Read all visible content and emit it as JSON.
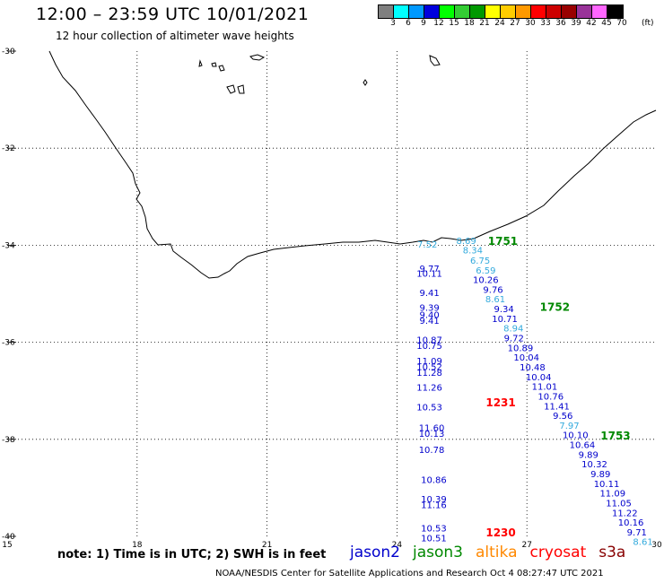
{
  "header": {
    "title": "12:00 – 23:59 UTC 10/01/2021",
    "subtitle": "12 hour collection of altimeter wave heights"
  },
  "color_scale": {
    "unit": "(ft)",
    "bins": [
      {
        "label": "3",
        "color": "#7f7f7f"
      },
      {
        "label": "6",
        "color": "#00ffff"
      },
      {
        "label": "9",
        "color": "#0099ff"
      },
      {
        "label": "12",
        "color": "#0000dd"
      },
      {
        "label": "15",
        "color": "#00ff00"
      },
      {
        "label": "18",
        "color": "#33cc33"
      },
      {
        "label": "21",
        "color": "#009900"
      },
      {
        "label": "24",
        "color": "#ffff00"
      },
      {
        "label": "27",
        "color": "#ffcc00"
      },
      {
        "label": "30",
        "color": "#ff9900"
      },
      {
        "label": "33",
        "color": "#ff0000"
      },
      {
        "label": "36",
        "color": "#cc0000"
      },
      {
        "label": "39",
        "color": "#990000"
      },
      {
        "label": "42",
        "color": "#993399"
      },
      {
        "label": "45",
        "color": "#ff66ff"
      },
      {
        "label": "70",
        "color": "#000000"
      }
    ]
  },
  "map": {
    "lat_labels": [
      "-30",
      "-32",
      "-34",
      "-36",
      "-38",
      "-40"
    ],
    "lon_labels": [
      "15",
      "18",
      "21",
      "24",
      "27",
      "30"
    ],
    "colors": {
      "jason2": "#0000cc",
      "jason3": "#008800",
      "altika": "#ff8800",
      "cryosat": "#ff0000",
      "light": "#33aadd",
      "s3a": "#880000"
    }
  },
  "observations": [
    {
      "text": "7.52",
      "lon": 24.7,
      "lat": -34.05,
      "sat": "light"
    },
    {
      "text": "8.69",
      "lon": 25.6,
      "lat": -33.97,
      "sat": "light"
    },
    {
      "text": "8.34",
      "lon": 25.75,
      "lat": -34.17,
      "sat": "light"
    },
    {
      "text": "6.75",
      "lon": 25.92,
      "lat": -34.38,
      "sat": "light"
    },
    {
      "text": "6.59",
      "lon": 26.05,
      "lat": -34.58,
      "sat": "light"
    },
    {
      "text": "10.26",
      "lon": 26.05,
      "lat": -34.78,
      "sat": "jason2"
    },
    {
      "text": "9.76",
      "lon": 26.22,
      "lat": -34.98,
      "sat": "jason2"
    },
    {
      "text": "8.61",
      "lon": 26.27,
      "lat": -35.18,
      "sat": "light"
    },
    {
      "text": "9.34",
      "lon": 26.47,
      "lat": -35.38,
      "sat": "jason2"
    },
    {
      "text": "10.71",
      "lon": 26.49,
      "lat": -35.58,
      "sat": "jason2"
    },
    {
      "text": "8.94",
      "lon": 26.69,
      "lat": -35.78,
      "sat": "light"
    },
    {
      "text": "9.72",
      "lon": 26.7,
      "lat": -35.98,
      "sat": "jason2"
    },
    {
      "text": "10.89",
      "lon": 26.85,
      "lat": -36.18,
      "sat": "jason2"
    },
    {
      "text": "10.04",
      "lon": 26.99,
      "lat": -36.38,
      "sat": "jason2"
    },
    {
      "text": "10.48",
      "lon": 27.13,
      "lat": -36.58,
      "sat": "jason2"
    },
    {
      "text": "10.04",
      "lon": 27.27,
      "lat": -36.78,
      "sat": "jason2"
    },
    {
      "text": "11.01",
      "lon": 27.41,
      "lat": -36.98,
      "sat": "jason2"
    },
    {
      "text": "10.76",
      "lon": 27.55,
      "lat": -37.18,
      "sat": "jason2"
    },
    {
      "text": "11.41",
      "lon": 27.69,
      "lat": -37.38,
      "sat": "jason2"
    },
    {
      "text": "9.56",
      "lon": 27.83,
      "lat": -37.58,
      "sat": "jason2"
    },
    {
      "text": "7.97",
      "lon": 27.98,
      "lat": -37.78,
      "sat": "light"
    },
    {
      "text": "10.10",
      "lon": 28.12,
      "lat": -37.98,
      "sat": "jason2"
    },
    {
      "text": "10.64",
      "lon": 28.28,
      "lat": -38.18,
      "sat": "jason2"
    },
    {
      "text": "9.89",
      "lon": 28.42,
      "lat": -38.38,
      "sat": "jason2"
    },
    {
      "text": "10.32",
      "lon": 28.56,
      "lat": -38.58,
      "sat": "jason2"
    },
    {
      "text": "9.89",
      "lon": 28.7,
      "lat": -38.78,
      "sat": "jason2"
    },
    {
      "text": "10.11",
      "lon": 28.84,
      "lat": -38.98,
      "sat": "jason2"
    },
    {
      "text": "11.09",
      "lon": 28.98,
      "lat": -39.18,
      "sat": "jason2"
    },
    {
      "text": "11.05",
      "lon": 29.12,
      "lat": -39.38,
      "sat": "jason2"
    },
    {
      "text": "11.22",
      "lon": 29.26,
      "lat": -39.58,
      "sat": "jason2"
    },
    {
      "text": "10.16",
      "lon": 29.4,
      "lat": -39.78,
      "sat": "jason2"
    },
    {
      "text": "9.71",
      "lon": 29.54,
      "lat": -39.98,
      "sat": "jason2"
    },
    {
      "text": "8.61",
      "lon": 29.68,
      "lat": -40.18,
      "sat": "light"
    },
    {
      "text": "9.77",
      "lon": 24.75,
      "lat": -34.55,
      "sat": "jason2"
    },
    {
      "text": "10.11",
      "lon": 24.75,
      "lat": -34.65,
      "sat": "jason2"
    },
    {
      "text": "9.41",
      "lon": 24.75,
      "lat": -35.05,
      "sat": "jason2"
    },
    {
      "text": "9.39",
      "lon": 24.75,
      "lat": -35.35,
      "sat": "jason2"
    },
    {
      "text": "9.40",
      "lon": 24.75,
      "lat": -35.5,
      "sat": "jason2"
    },
    {
      "text": "9.41",
      "lon": 24.75,
      "lat": -35.62,
      "sat": "jason2"
    },
    {
      "text": "10.87",
      "lon": 24.75,
      "lat": -36.02,
      "sat": "jason2"
    },
    {
      "text": "10.75",
      "lon": 24.75,
      "lat": -36.14,
      "sat": "jason2"
    },
    {
      "text": "11.09",
      "lon": 24.75,
      "lat": -36.45,
      "sat": "jason2"
    },
    {
      "text": "10.52",
      "lon": 24.75,
      "lat": -36.57,
      "sat": "jason2"
    },
    {
      "text": "11.28",
      "lon": 24.75,
      "lat": -36.69,
      "sat": "jason2"
    },
    {
      "text": "11.26",
      "lon": 24.75,
      "lat": -37.0,
      "sat": "jason2"
    },
    {
      "text": "10.53",
      "lon": 24.75,
      "lat": -37.4,
      "sat": "jason2"
    },
    {
      "text": "11.60",
      "lon": 24.8,
      "lat": -37.83,
      "sat": "jason2"
    },
    {
      "text": "10.13",
      "lon": 24.8,
      "lat": -37.95,
      "sat": "jason2"
    },
    {
      "text": "10.78",
      "lon": 24.8,
      "lat": -38.28,
      "sat": "jason2"
    },
    {
      "text": "10.86",
      "lon": 24.85,
      "lat": -38.9,
      "sat": "jason2"
    },
    {
      "text": "10.39",
      "lon": 24.85,
      "lat": -39.3,
      "sat": "jason2"
    },
    {
      "text": "11.16",
      "lon": 24.85,
      "lat": -39.42,
      "sat": "jason2"
    },
    {
      "text": "10.53",
      "lon": 24.85,
      "lat": -39.9,
      "sat": "jason2"
    },
    {
      "text": "10.51",
      "lon": 24.85,
      "lat": -40.1,
      "sat": "jason2"
    }
  ],
  "time_stamps": [
    {
      "text": "1751",
      "lon": 26.1,
      "lat": -33.99,
      "sat": "jason3"
    },
    {
      "text": "1752",
      "lon": 27.3,
      "lat": -35.35,
      "sat": "jason3"
    },
    {
      "text": "1753",
      "lon": 28.7,
      "lat": -38.0,
      "sat": "jason3"
    },
    {
      "text": "1231",
      "lon": 26.05,
      "lat": -37.32,
      "sat": "cryosat"
    },
    {
      "text": "1230",
      "lon": 26.05,
      "lat": -40.0,
      "sat": "cryosat"
    }
  ],
  "note": "note:  1) Time is in UTC; 2) SWH is in feet",
  "legend": [
    {
      "label": "jason2",
      "sat": "jason2"
    },
    {
      "label": "jason3",
      "sat": "jason3"
    },
    {
      "label": "altika",
      "sat": "altika"
    },
    {
      "label": "cryosat",
      "sat": "cryosat"
    },
    {
      "label": "s3a",
      "sat": "s3a"
    }
  ],
  "footer": "NOAA/NESDIS Center for Satellite Applications and Research   Oct  4 08:27:47 UTC 2021"
}
